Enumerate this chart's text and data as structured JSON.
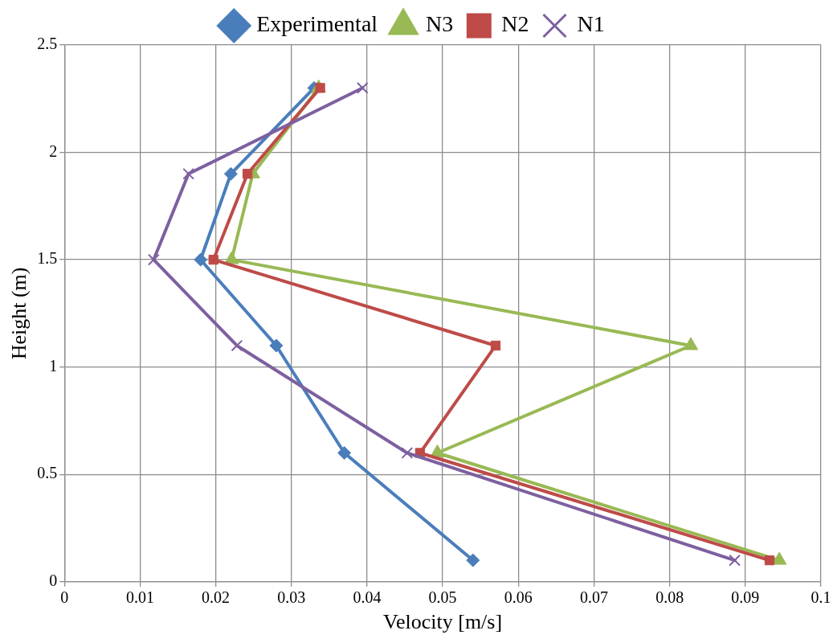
{
  "chart_data": {
    "type": "line",
    "xlabel": "Velocity [m/s]",
    "ylabel": "Height (m)",
    "xlim": [
      0,
      0.1
    ],
    "xticks": [
      0,
      0.01,
      0.02,
      0.03,
      0.04,
      0.05,
      0.06,
      0.07,
      0.08,
      0.09,
      0.1
    ],
    "ylim": [
      0,
      2.5
    ],
    "yticks": [
      0,
      0.5,
      1,
      1.5,
      2,
      2.5
    ],
    "grid": true,
    "legend": "top",
    "line_style": "solid",
    "series": [
      {
        "name": "Experimental",
        "color": "#4a7ebb",
        "marker": "diamond",
        "x": [
          0.054,
          0.037,
          0.028,
          0.018,
          0.022,
          0.033
        ],
        "values": [
          0.1,
          0.6,
          1.1,
          1.5,
          1.9,
          2.3
        ]
      },
      {
        "name": "N3",
        "color": "#98b954",
        "marker": "triangle",
        "x": [
          0.0945,
          0.0493,
          0.0828,
          0.0221,
          0.0249,
          0.0336
        ],
        "values": [
          0.1,
          0.6,
          1.1,
          1.5,
          1.9,
          2.3
        ]
      },
      {
        "name": "N2",
        "color": "#be4b48",
        "marker": "square",
        "x": [
          0.0932,
          0.047,
          0.057,
          0.0197,
          0.0242,
          0.0338
        ],
        "values": [
          0.1,
          0.6,
          1.1,
          1.5,
          1.9,
          2.3
        ]
      },
      {
        "name": "N1",
        "color": "#7d60a0",
        "marker": "cross",
        "x": [
          0.0886,
          0.0453,
          0.0228,
          0.0118,
          0.0164,
          0.0394
        ],
        "values": [
          0.1,
          0.6,
          1.1,
          1.5,
          1.9,
          2.3
        ]
      }
    ]
  }
}
